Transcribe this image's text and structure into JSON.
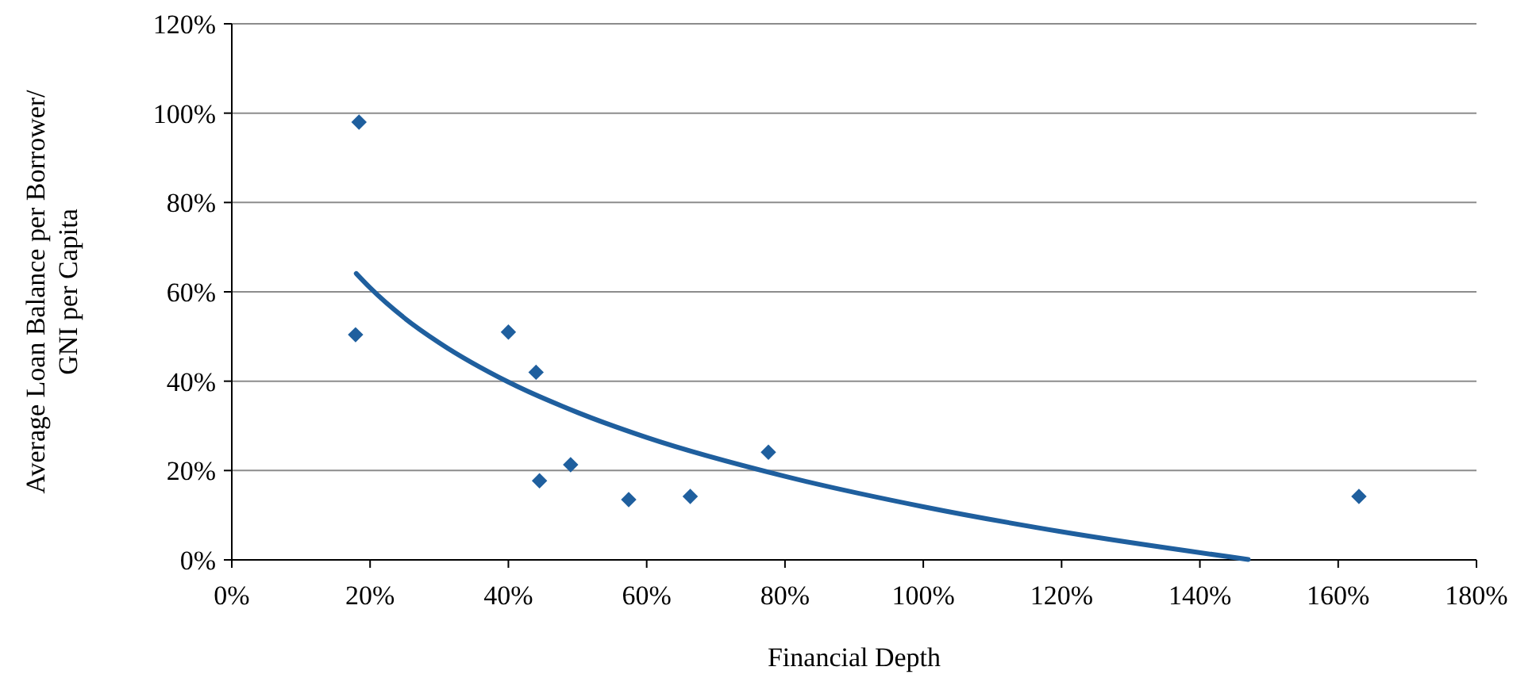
{
  "chart_data": {
    "type": "scatter",
    "xlabel": "Financial Depth",
    "ylabel": "Average Loan Balance per Borrower/\nGNI per Capita",
    "xlim": [
      0,
      180
    ],
    "ylim": [
      0,
      120
    ],
    "xticks": [
      {
        "value": 0,
        "label": "0%"
      },
      {
        "value": 20,
        "label": "20%"
      },
      {
        "value": 40,
        "label": "40%"
      },
      {
        "value": 60,
        "label": "60%"
      },
      {
        "value": 80,
        "label": "80%"
      },
      {
        "value": 100,
        "label": "100%"
      },
      {
        "value": 120,
        "label": "120%"
      },
      {
        "value": 140,
        "label": "140%"
      },
      {
        "value": 160,
        "label": "160%"
      },
      {
        "value": 180,
        "label": "180%"
      }
    ],
    "yticks": [
      {
        "value": 0,
        "label": "0%"
      },
      {
        "value": 20,
        "label": "20%"
      },
      {
        "value": 40,
        "label": "40%"
      },
      {
        "value": 60,
        "label": "60%"
      },
      {
        "value": 80,
        "label": "80%"
      },
      {
        "value": 100,
        "label": "100%"
      },
      {
        "value": 120,
        "label": "120%"
      }
    ],
    "grid": "y",
    "series": [
      {
        "marker": "diamond",
        "color": "#1f5f9e",
        "x": [
          18.4,
          17.9,
          40,
          44,
          44.5,
          49,
          57.4,
          66.3,
          77.6,
          163
        ],
        "values": [
          98,
          50.4,
          51,
          42,
          17.7,
          21.3,
          13.5,
          14.2,
          24.1,
          14.2
        ]
      },
      {
        "type": "line",
        "color": "#1f5f9e",
        "line_style": "solid",
        "x": [
          18,
          20,
          25,
          30,
          40,
          50,
          60,
          80,
          100,
          120,
          147
        ],
        "values": [
          64.1,
          60.9,
          54.1,
          48.6,
          39.8,
          33,
          27.4,
          18.7,
          11.9,
          6.3,
          0.1
        ]
      }
    ]
  }
}
